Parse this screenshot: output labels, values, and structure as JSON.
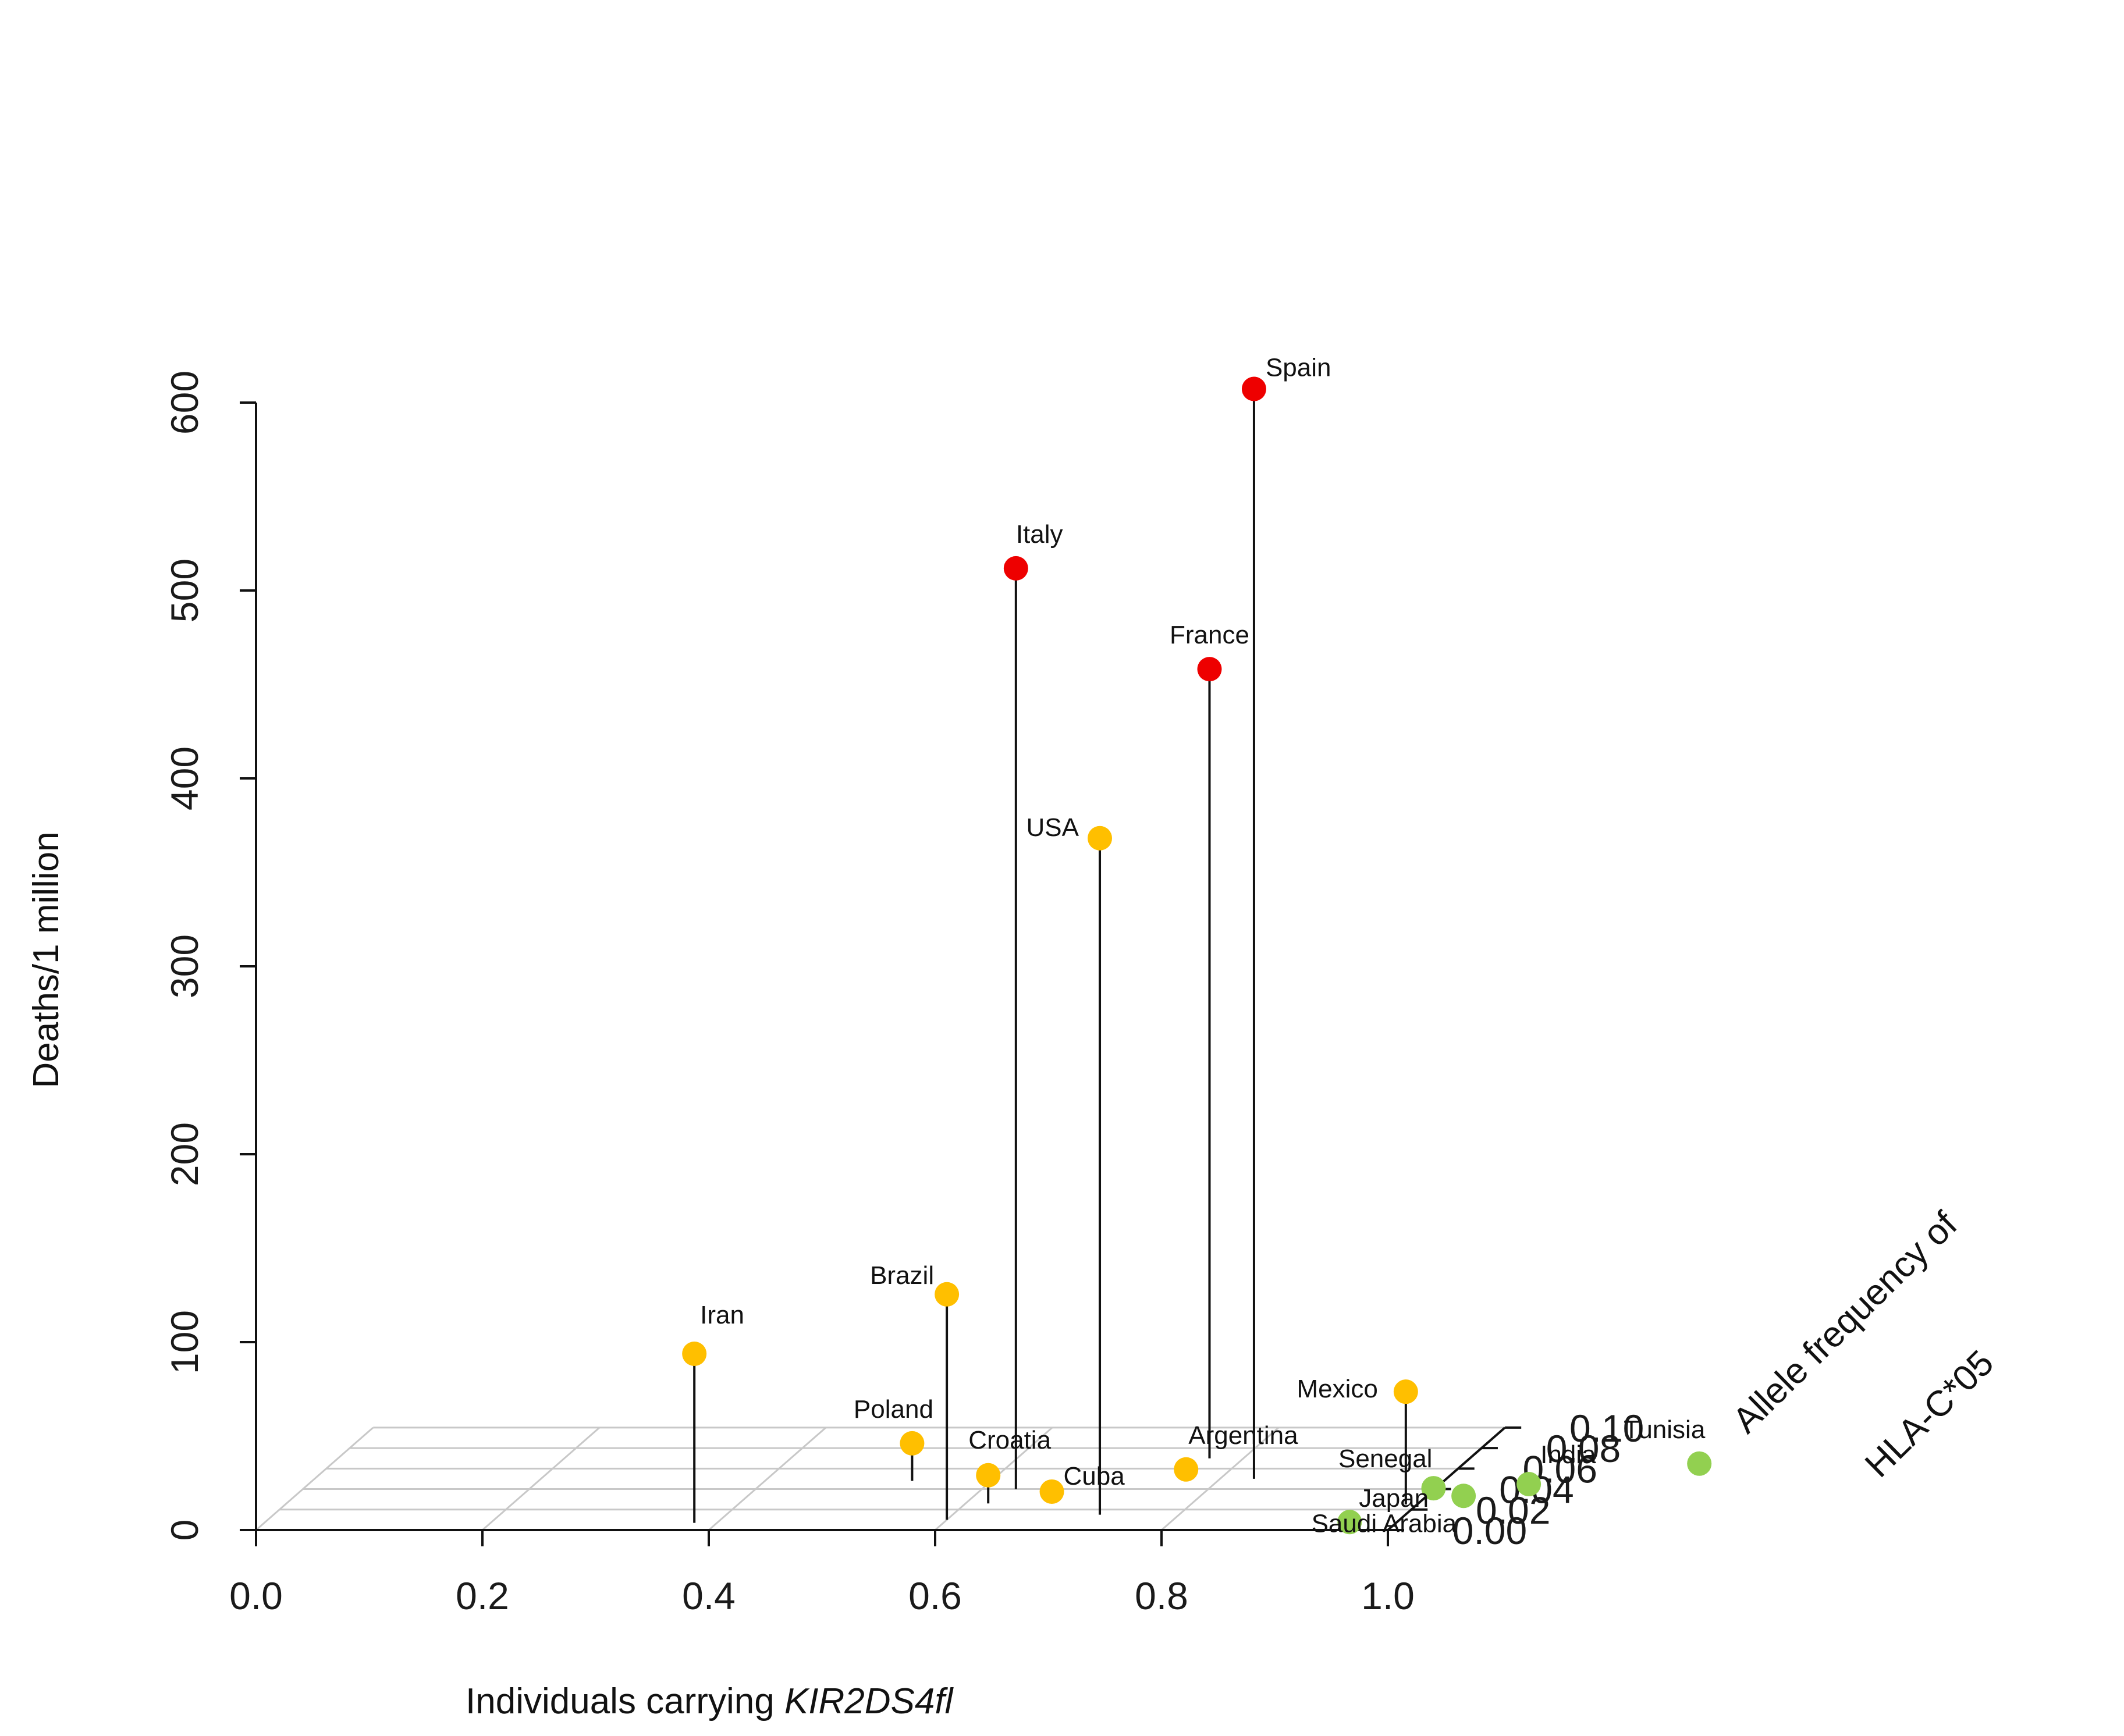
{
  "chart_data": {
    "type": "scatter3d",
    "title": "",
    "x_axis": {
      "label_prefix": "Individuals carrying ",
      "label_italic": "KIR2DS4fl",
      "range": [
        0.0,
        1.0
      ],
      "ticks": [
        "0.0",
        "0.2",
        "0.4",
        "0.6",
        "0.8",
        "1.0"
      ]
    },
    "y_axis": {
      "label_line1": "Allele frequency of",
      "label_line2": "HLA-C*05",
      "range": [
        0.0,
        0.1
      ],
      "ticks": [
        "0.00",
        "0.02",
        "0.04",
        "0.06",
        "0.08",
        "0.10"
      ]
    },
    "z_axis": {
      "label": "Deaths/1 million",
      "range": [
        0,
        600
      ],
      "ticks": [
        "0",
        "100",
        "200",
        "300",
        "400",
        "500",
        "600"
      ]
    },
    "colors": {
      "high": "#ee0000",
      "medium": "#ffbf00",
      "low": "#92d050"
    },
    "points": [
      {
        "country": "Spain",
        "x": 0.83,
        "y": 0.05,
        "deaths": 580,
        "group": "high"
      },
      {
        "country": "Italy",
        "x": 0.63,
        "y": 0.04,
        "deaths": 490,
        "group": "high"
      },
      {
        "country": "France",
        "x": 0.77,
        "y": 0.07,
        "deaths": 420,
        "group": "high"
      },
      {
        "country": "USA",
        "x": 0.73,
        "y": 0.015,
        "deaths": 360,
        "group": "medium"
      },
      {
        "country": "Mexico",
        "x": 0.99,
        "y": 0.025,
        "deaths": 60,
        "group": "medium"
      },
      {
        "country": "Brazil",
        "x": 0.6,
        "y": 0.01,
        "deaths": 120,
        "group": "medium"
      },
      {
        "country": "Poland",
        "x": 0.53,
        "y": 0.048,
        "deaths": 20,
        "group": "medium"
      },
      {
        "country": "Iran",
        "x": 0.38,
        "y": 0.007,
        "deaths": 90,
        "group": "medium"
      },
      {
        "country": "Croatia",
        "x": 0.62,
        "y": 0.026,
        "deaths": 15,
        "group": "medium"
      },
      {
        "country": "Cuba",
        "x": 0.67,
        "y": 0.032,
        "deaths": 3,
        "group": "medium"
      },
      {
        "country": "Argentina",
        "x": 0.77,
        "y": 0.05,
        "deaths": 5,
        "group": "medium"
      },
      {
        "country": "Tunisia",
        "x": 1.21,
        "y": 0.063,
        "deaths": 1,
        "group": "low"
      },
      {
        "country": "India",
        "x": 1.08,
        "y": 0.043,
        "deaths": 1,
        "group": "low"
      },
      {
        "country": "Senegal",
        "x": 1.0,
        "y": 0.039,
        "deaths": 1,
        "group": "low"
      },
      {
        "country": "Saudi Arabia",
        "x": 1.04,
        "y": 0.026,
        "deaths": 4,
        "group": "low"
      },
      {
        "country": "Japan",
        "x": 0.96,
        "y": 0.006,
        "deaths": 1,
        "group": "low"
      }
    ]
  }
}
